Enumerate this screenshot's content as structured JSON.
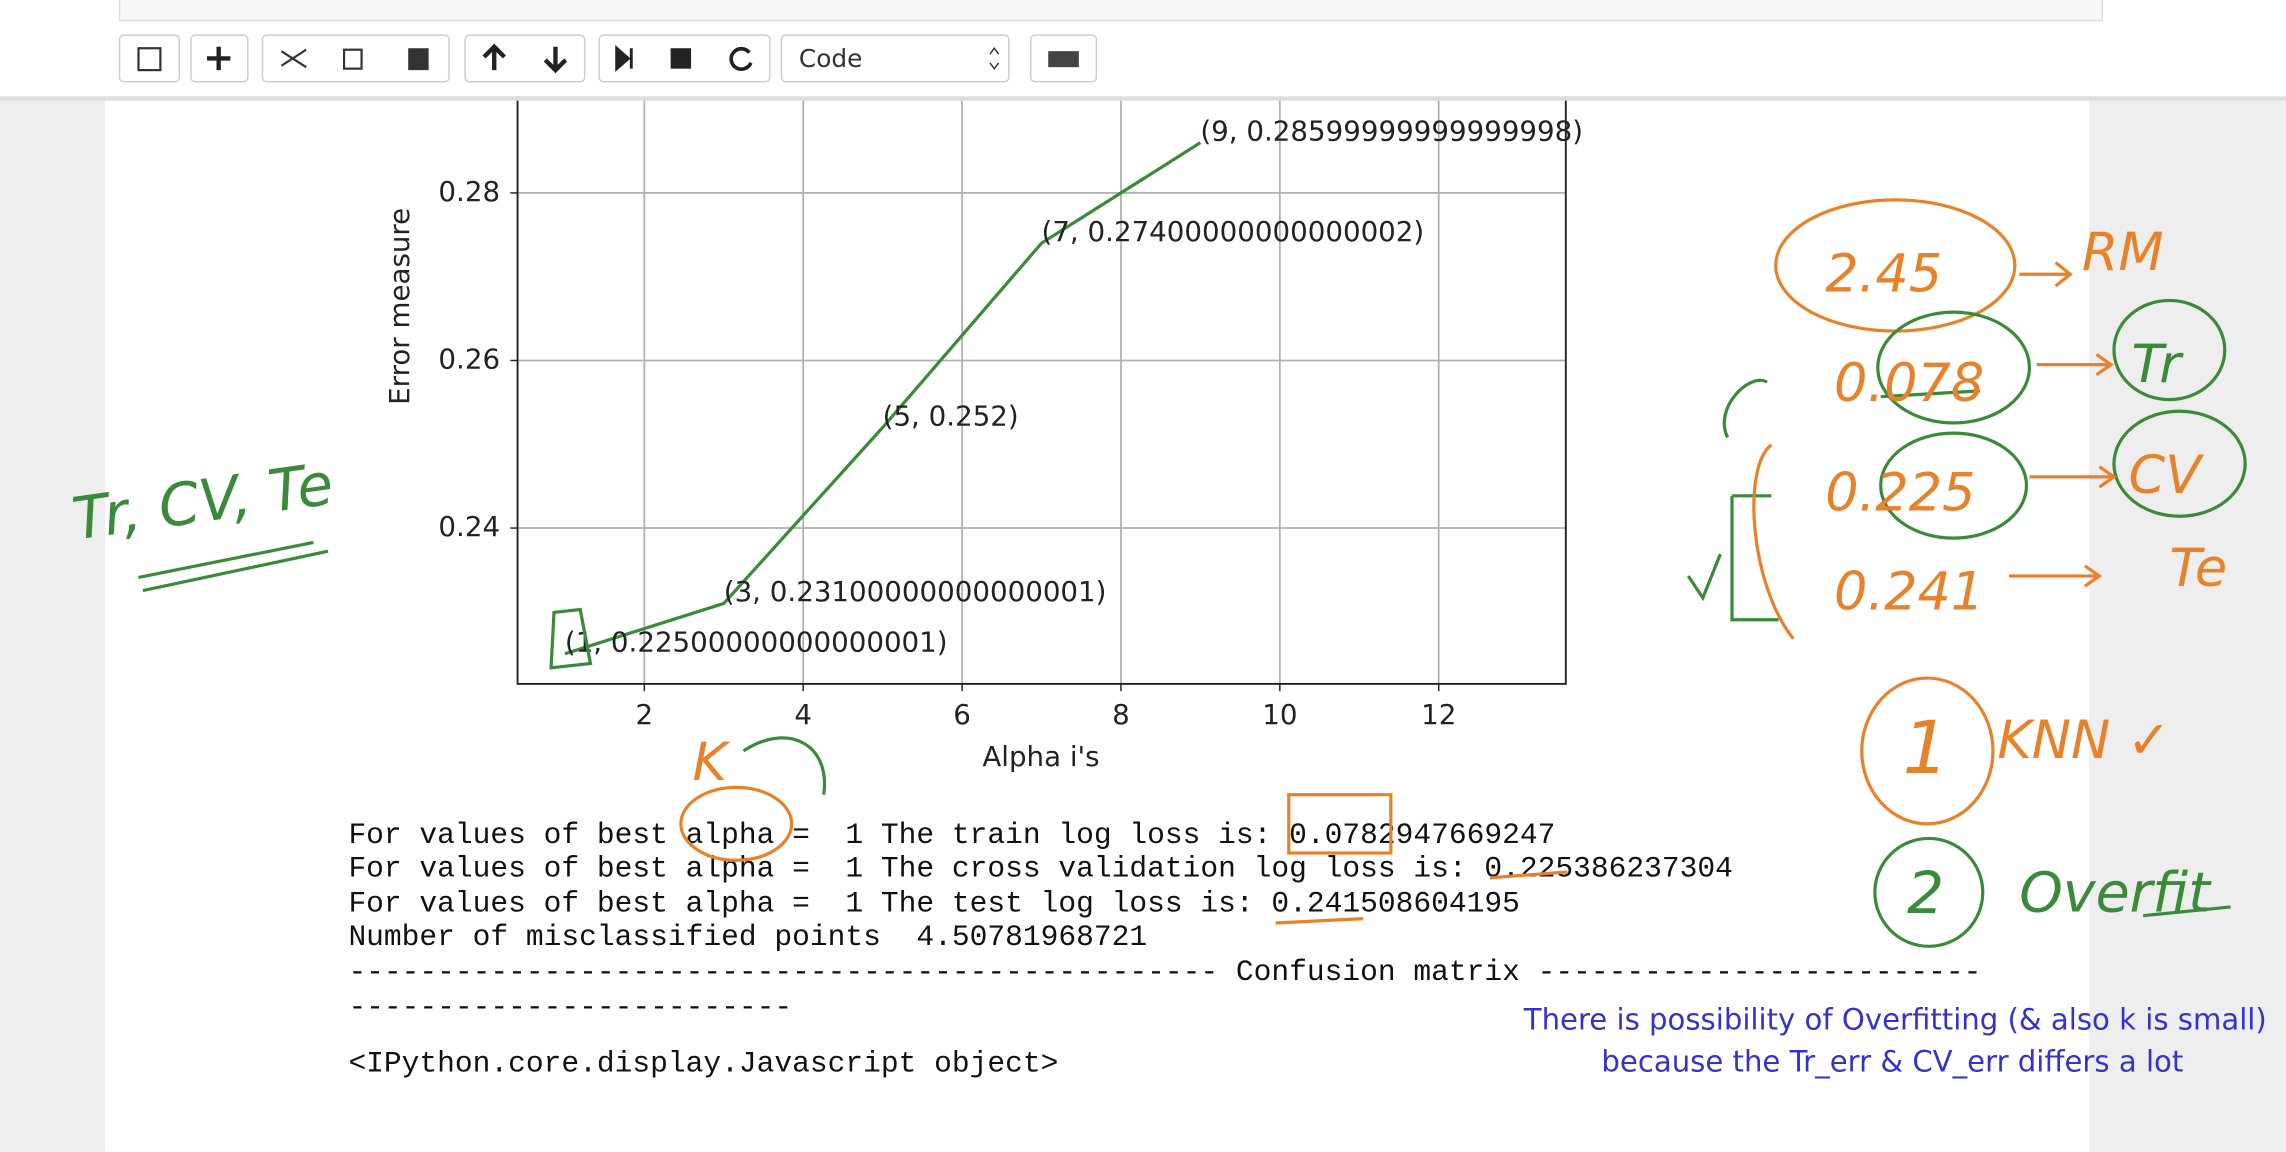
{
  "toolbar": {
    "cell_type": "Code"
  },
  "chart_data": {
    "type": "line",
    "x_label": "Alpha i's",
    "y_label": "Error measure",
    "x": [
      1,
      3,
      5,
      7,
      9
    ],
    "values": [
      0.225,
      0.231,
      0.252,
      0.274,
      0.286
    ],
    "value_labels": [
      "(1, 0.22500000000000001)",
      "(3, 0.23100000000000001)",
      "(5, 0.252)",
      "(7, 0.27400000000000002)",
      "(9, 0.28599999999999998)"
    ],
    "color": "#3a8a3a",
    "xlim": [
      0.404,
      13.6
    ],
    "xticks": [
      2,
      4,
      6,
      8,
      10,
      12
    ],
    "ylim": [
      0.2214,
      0.2917
    ],
    "yticks": [
      0.24,
      0.26,
      0.28
    ],
    "grid": true
  },
  "output": {
    "lines": [
      "For values of best alpha =  1 The train log loss is: 0.0782947669247",
      "For values of best alpha =  1 The cross validation log loss is: 0.225386237304",
      "For values of best alpha =  1 The test log loss is: 0.241508604195",
      "Number of misclassified points  4.50781968721",
      "------------------------------------------------- Confusion matrix -------------------------",
      "-------------------------",
      "<IPython.core.display.Javascript object>"
    ]
  },
  "annotations": {
    "handwritten": [
      "Tr, CV, Te",
      "2.45",
      "RM",
      "0.078",
      "Tr",
      "0.225",
      "CV",
      "0.241",
      "Te",
      "1",
      "KNN ✓",
      "2",
      "Overfit",
      "K"
    ],
    "note": [
      "There is possibility of Overfitting (& also k is small)",
      "because the Tr_err & CV_err differs a lot"
    ]
  }
}
